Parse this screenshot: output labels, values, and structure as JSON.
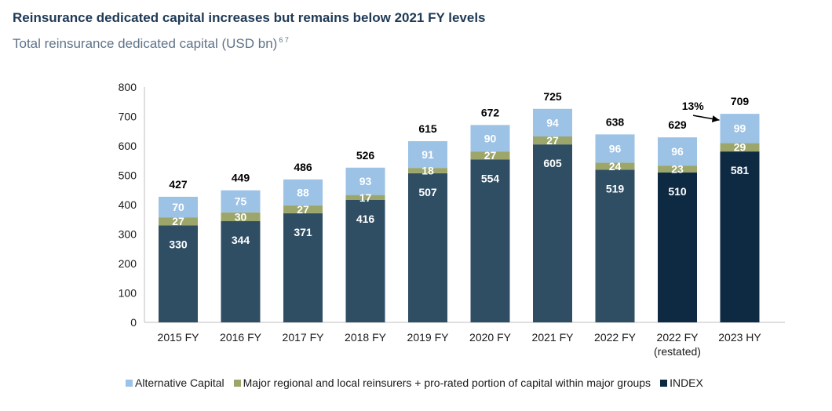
{
  "header": {
    "title": "Reinsurance dedicated capital increases but remains below 2021 FY levels",
    "subtitle": "Total reinsurance dedicated capital (USD bn)",
    "subtitle_notes": "6 7"
  },
  "colors": {
    "alternative": "#9cc2e5",
    "regional": "#9ca66a",
    "index": "#2f4e64",
    "index_highlight": "#0e2a43"
  },
  "chart_data": {
    "type": "bar",
    "stacked": true,
    "categories": [
      "2015 FY",
      "2016 FY",
      "2017 FY",
      "2018 FY",
      "2019 FY",
      "2020 FY",
      "2021 FY",
      "2022 FY",
      "2022 FY\n(restated)",
      "2023 HY"
    ],
    "series": [
      {
        "name": "INDEX",
        "values": [
          330,
          344,
          371,
          416,
          507,
          554,
          605,
          519,
          510,
          581
        ]
      },
      {
        "name": "Major regional and local reinsurers + pro-rated portion of capital within major groups",
        "values": [
          27,
          30,
          27,
          17,
          18,
          27,
          27,
          24,
          23,
          29
        ]
      },
      {
        "name": "Alternative Capital",
        "values": [
          70,
          75,
          88,
          93,
          91,
          90,
          94,
          96,
          96,
          99
        ]
      }
    ],
    "totals": [
      427,
      449,
      486,
      526,
      615,
      672,
      725,
      638,
      629,
      709
    ],
    "highlight_index_for": [
      8,
      9
    ],
    "annotation": {
      "text": "13%",
      "from": 8,
      "to": 9
    },
    "ylim": [
      0,
      800
    ],
    "yticks": [
      0,
      100,
      200,
      300,
      400,
      500,
      600,
      700,
      800
    ],
    "grid": false,
    "legend": {
      "position": "bottom",
      "order": [
        "Alternative Capital",
        "Major regional and local reinsurers + pro-rated portion of capital within major groups",
        "INDEX"
      ],
      "labels": [
        "Alternative Capital",
        "Major regional and local reinsurers + pro-rated portion of capital within major groups",
        "INDEX"
      ]
    }
  }
}
